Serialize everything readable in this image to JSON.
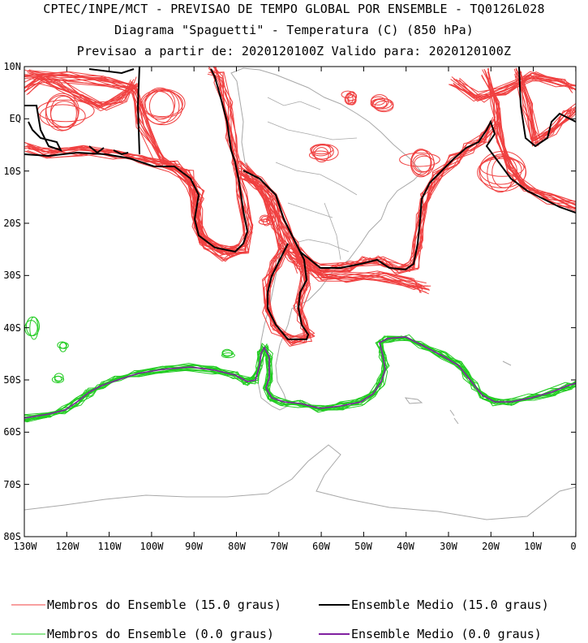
{
  "header": {
    "line1": "CPTEC/INPE/MCT - PREVISAO DE TEMPO GLOBAL POR ENSEMBLE - TQ0126L028",
    "line2": "Diagrama \"Spaguetti\" - Temperatura (C) (850 hPa)",
    "line3": "Previsao a partir de: 2020120100Z  Valido para: 2020120100Z"
  },
  "map": {
    "lat_labels": [
      "10N",
      "EQ",
      "10S",
      "20S",
      "30S",
      "40S",
      "50S",
      "60S",
      "70S",
      "80S"
    ],
    "lon_labels": [
      "130W",
      "120W",
      "110W",
      "100W",
      "90W",
      "80W",
      "70W",
      "60W",
      "50W",
      "40W",
      "30W",
      "20W",
      "10W",
      "0"
    ],
    "colors": {
      "members_15": "#f04040",
      "mean_15": "#000000",
      "members_0": "#22cc22",
      "mean_0": "#8020a0",
      "coast": "#a8a8a8"
    }
  },
  "legend": {
    "members_15": "Membros do Ensemble (15.0 graus)",
    "mean_15": "Ensemble Medio (15.0 graus)",
    "members_0": "Membros do Ensemble (0.0 graus)",
    "mean_0": "Ensemble Medio (0.0 graus)"
  }
}
